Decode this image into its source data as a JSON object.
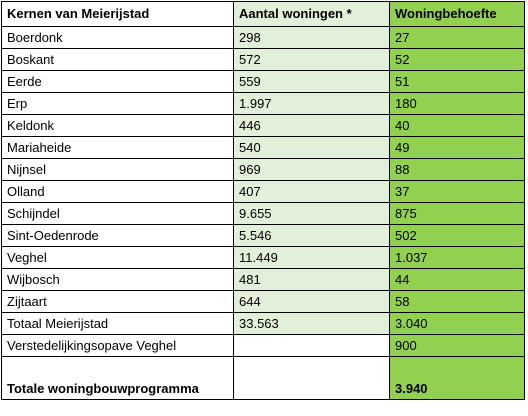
{
  "table": {
    "headers": [
      "Kernen van Meierijstad",
      "Aantal woningen *",
      "Woningbehoefte"
    ],
    "rows": [
      {
        "kern": "Boerdonk",
        "aantal": "298",
        "behoefte": "27"
      },
      {
        "kern": "Boskant",
        "aantal": "572",
        "behoefte": "52"
      },
      {
        "kern": "Eerde",
        "aantal": "559",
        "behoefte": "51"
      },
      {
        "kern": "Erp",
        "aantal": "1.997",
        "behoefte": "180"
      },
      {
        "kern": "Keldonk",
        "aantal": "446",
        "behoefte": "40"
      },
      {
        "kern": "Mariaheide",
        "aantal": "540",
        "behoefte": "49"
      },
      {
        "kern": "Nijnsel",
        "aantal": "969",
        "behoefte": "88"
      },
      {
        "kern": "Olland",
        "aantal": "407",
        "behoefte": "37"
      },
      {
        "kern": "Schijndel",
        "aantal": "9.655",
        "behoefte": "875"
      },
      {
        "kern": "Sint-Oedenrode",
        "aantal": "5.546",
        "behoefte": "502"
      },
      {
        "kern": "Veghel",
        "aantal": "11.449",
        "behoefte": "1.037"
      },
      {
        "kern": "Wijbosch",
        "aantal": "481",
        "behoefte": "44"
      },
      {
        "kern": "Zijtaart",
        "aantal": "644",
        "behoefte": "58"
      },
      {
        "kern": "Totaal Meierijstad",
        "aantal": "33.563",
        "behoefte": "3.040"
      }
    ],
    "verstedelijking": {
      "label": "Verstedelijkingsopave Veghel",
      "aantal": "",
      "behoefte": "900"
    },
    "totale": {
      "label": "Totale woningbouwprogramma",
      "aantal": "",
      "behoefte": "3.940"
    }
  },
  "colors": {
    "header_col2": "#e2efd9",
    "col2": "#e2efd9",
    "col3": "#92d050"
  }
}
